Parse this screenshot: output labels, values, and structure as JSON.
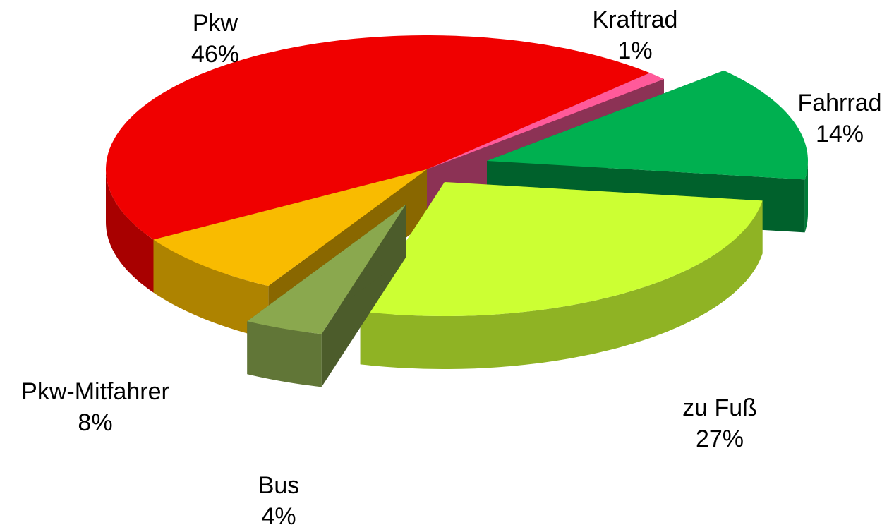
{
  "chart_data": {
    "type": "pie",
    "categories": [
      "Kraftrad",
      "Fahrrad",
      "zu Fuß",
      "Bus",
      "Pkw-Mitfahrer",
      "Pkw"
    ],
    "values": [
      1,
      14,
      27,
      4,
      8,
      46
    ],
    "value_labels": [
      "1%",
      "14%",
      "27%",
      "4%",
      "8%",
      "46%"
    ],
    "colors": [
      "#ff5a9a",
      "#00b050",
      "#ccff33",
      "#8aa84e",
      "#f9bb00",
      "#f00000"
    ],
    "three_d": true
  }
}
